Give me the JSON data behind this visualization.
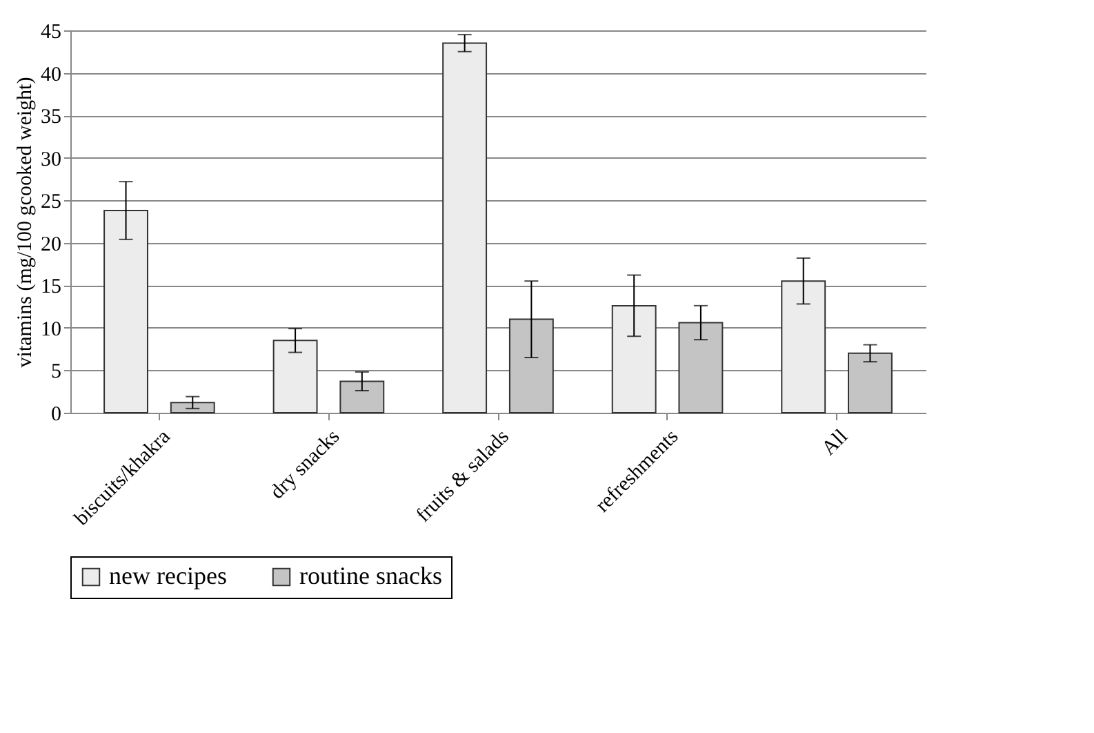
{
  "chart_data": {
    "type": "bar",
    "ylabel": "vitamins  (mg/100  gcooked weight)",
    "categories": [
      "biscuits/khakra",
      "dry snacks",
      "fruits & salads",
      "refreshments",
      "All"
    ],
    "series": [
      {
        "name": "new recipes",
        "color": "#ececec",
        "values": [
          23.8,
          8.5,
          43.5,
          12.6,
          15.5
        ],
        "errors": [
          3.4,
          1.4,
          1.0,
          3.6,
          2.7
        ]
      },
      {
        "name": "routine snacks",
        "color": "#c4c4c4",
        "values": [
          1.2,
          3.7,
          11.0,
          10.6,
          7.0
        ],
        "errors": [
          0.7,
          1.1,
          4.5,
          2.0,
          1.0
        ]
      }
    ],
    "ylim": [
      0,
      45
    ],
    "yticks": [
      0,
      5,
      10,
      15,
      20,
      25,
      30,
      35,
      40,
      45
    ],
    "grid": "y",
    "legend": "bottom"
  }
}
